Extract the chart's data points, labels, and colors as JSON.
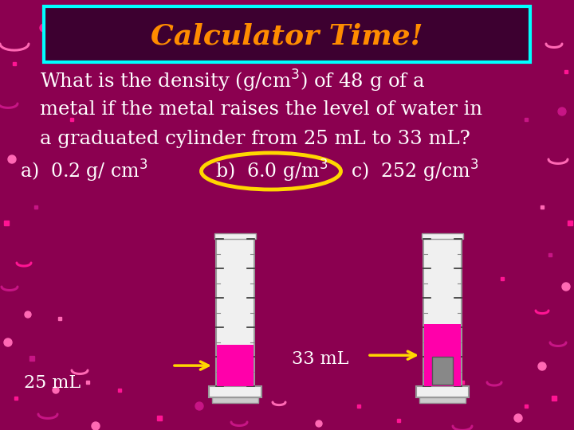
{
  "bg_color": "#8B0050",
  "title_text": "Calculator Time!",
  "title_color": "#FF8C00",
  "title_box_color": "#3D0030",
  "title_box_border": "#00FFFF",
  "text_color": "#FFFFFF",
  "highlight_color": "#FFD700",
  "arrow_color": "#FFD700",
  "cylinder_color": "#F0F0F0",
  "liquid_color": "#FF00AA",
  "metal_color": "#888888",
  "label_25": "25 mL",
  "label_33": "33 mL",
  "confetti_pink": "#FF69B4",
  "confetti_hot": "#FF1493",
  "confetti_dark": "#C71585"
}
